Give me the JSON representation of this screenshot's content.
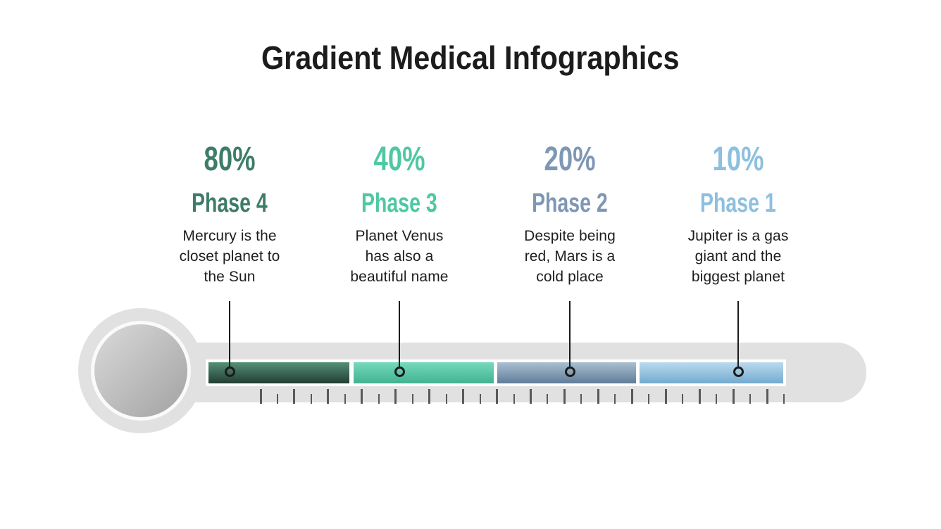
{
  "slide": {
    "title": "Gradient Medical Infographics",
    "background_color": "#ffffff",
    "title_color": "#1c1c1c"
  },
  "phases": [
    {
      "percent": "80%",
      "label": "Phase 4",
      "description": "Mercury is the\ncloset planet to\nthe Sun",
      "text_color": "#3d7c69",
      "segment_gradient_top": "#549078",
      "segment_gradient_bottom": "#223d33"
    },
    {
      "percent": "40%",
      "label": "Phase 3",
      "description": "Planet Venus\nhas also a\nbeautiful name",
      "text_color": "#4ec8a3",
      "segment_gradient_top": "#74dabc",
      "segment_gradient_bottom": "#43b290"
    },
    {
      "percent": "20%",
      "label": "Phase 2",
      "description": "Despite being\nred, Mars is a\ncold place",
      "text_color": "#7e97b5",
      "segment_gradient_top": "#aabfd0",
      "segment_gradient_bottom": "#5f7d9a"
    },
    {
      "percent": "10%",
      "label": "Phase 1",
      "description": "Jupiter is a gas\ngiant and the\nbiggest planet",
      "text_color": "#8dc0de",
      "segment_gradient_top": "#bbdaee",
      "segment_gradient_bottom": "#73abd0"
    }
  ],
  "thermometer": {
    "tube_color": "#e1e1e2",
    "bulb_outer_color": "#e1e1e2",
    "bulb_ring_color": "#fafafa",
    "bulb_inner_top": "#dadada",
    "bulb_inner_bottom": "#a2a2a2",
    "strip_color": "#ffffff",
    "tick_color": "#58595b",
    "tick_count": 32,
    "line_color": "#1b1b1b",
    "marker_color": "#1b1b1b"
  }
}
